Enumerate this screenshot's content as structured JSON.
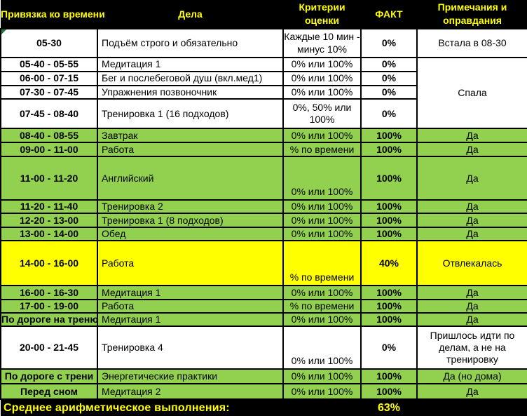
{
  "colors": {
    "done_green": "#92D050",
    "partial_yellow": "#FFFF00",
    "header_bg": "#000000",
    "header_text": "#FFFF00",
    "corner_flag_green": "#1e7a38"
  },
  "icons": {
    "cell_corner_flag": "green-triangle"
  },
  "headers": {
    "time": "Привязка ко времени",
    "tasks": "Дела",
    "criteria": "Критерии оценки",
    "fact": "ФАКТ",
    "notes": "Примечания и оправдания"
  },
  "rows": [
    {
      "time": "05-30",
      "task": "Подъём строго и обязательно",
      "criteria": "Каждые 10 мин - минус 10%",
      "fact": "0%",
      "note": "Встала в 08-30",
      "row_color": "white"
    },
    {
      "time": "05-40 - 05-55",
      "task": "Медитация 1",
      "criteria": "0% или 100%",
      "fact": "0%",
      "note": "Спала",
      "row_color": "white"
    },
    {
      "time": "06-00 - 07-15",
      "task": "Бег и послебеговой душ (вкл.мед1)",
      "criteria": "0% или 100%",
      "fact": "0%",
      "note": "",
      "row_color": "white"
    },
    {
      "time": "07-30 - 07-45",
      "task": "Упражнения позвоночник",
      "criteria": "0% или 100%",
      "fact": "0%",
      "note": "",
      "row_color": "white"
    },
    {
      "time": "07-45 - 08-40",
      "task": "Тренировка 1 (16 подходов)",
      "criteria": "0%, 50% или 100%",
      "fact": "0%",
      "note": "",
      "row_color": "white"
    },
    {
      "time": "08-40 - 08-55",
      "task": "Завтрак",
      "criteria": "0% или 100%",
      "fact": "100%",
      "note": "Да",
      "row_color": "green"
    },
    {
      "time": "09-00 - 11-00",
      "task": "Работа",
      "criteria": "% по времени",
      "fact": "100%",
      "note": "Да",
      "row_color": "green"
    },
    {
      "time": "11-00 - 11-20",
      "task": "Английский",
      "criteria": "0% или 100%",
      "fact": "100%",
      "note": "Да",
      "row_color": "green"
    },
    {
      "time": "11-20 - 11-40",
      "task": "Тренировка 2",
      "criteria": "0% или 100%",
      "fact": "100%",
      "note": "Да",
      "row_color": "green"
    },
    {
      "time": "12-20 - 13-00",
      "task": "Тренировка 1 (8 подходов)",
      "criteria": "0% или 100%",
      "fact": "100%",
      "note": "Да",
      "row_color": "green"
    },
    {
      "time": "13-00 - 14-00",
      "task": "Обед",
      "criteria": "0% или 100%",
      "fact": "100%",
      "note": "Да",
      "row_color": "green"
    },
    {
      "time": "14-00 - 16-00",
      "task": "Работа",
      "criteria": "% по времени",
      "fact": "40%",
      "note": "Отвлекалась",
      "row_color": "yellow"
    },
    {
      "time": "16-00 - 16-30",
      "task": "Медитация 1",
      "criteria": "0% или 100%",
      "fact": "100%",
      "note": "Да",
      "row_color": "green"
    },
    {
      "time": "17-00 - 19-00",
      "task": "Работа",
      "criteria": "% по времени",
      "fact": "100%",
      "note": "Да",
      "row_color": "green"
    },
    {
      "time": "По дороге на треню",
      "task": "Медитация 1",
      "criteria": "0% или 100%",
      "fact": "100%",
      "note": "Да",
      "row_color": "green"
    },
    {
      "time": "20-00 - 21-45",
      "task": "Тренировка 4",
      "criteria": "0% или 100%",
      "fact": "0%",
      "note": "Пришлось идти по делам, а не на тренировку",
      "row_color": "white"
    },
    {
      "time": "По дороге с трени",
      "task": "Энергетические практики",
      "criteria": "0% или 100%",
      "fact": "100%",
      "note": "Да (но дома)",
      "row_color": "green"
    },
    {
      "time": "Перед сном",
      "task": "Медитация 2",
      "criteria": "0% или 100%",
      "fact": "100%",
      "note": "Да",
      "row_color": "green"
    }
  ],
  "footer": {
    "label": "Среднее арифметическое выполнения:",
    "value": "63%"
  }
}
